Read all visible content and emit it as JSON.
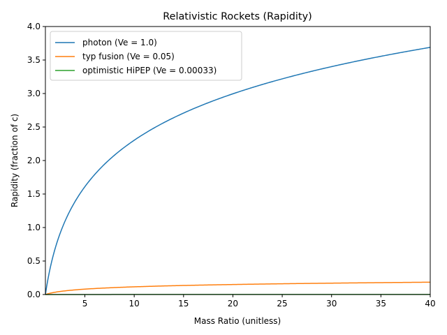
{
  "chart_data": {
    "type": "line",
    "title": "Relativistic Rockets (Rapidity)",
    "xlabel": "Mass Ratio (unitless)",
    "ylabel": "Rapidity (fraction of c)",
    "xlim": [
      1,
      40
    ],
    "ylim": [
      0,
      4.0
    ],
    "xticks": [
      5,
      10,
      15,
      20,
      25,
      30,
      35,
      40
    ],
    "xtick_labels": [
      "5",
      "10",
      "15",
      "20",
      "25",
      "30",
      "35",
      "40"
    ],
    "yticks": [
      0,
      0.5,
      1.0,
      1.5,
      2.0,
      2.5,
      3.0,
      3.5,
      4.0
    ],
    "ytick_labels": [
      "0.0",
      "0.5",
      "1.0",
      "1.5",
      "2.0",
      "2.5",
      "3.0",
      "3.5",
      "4.0"
    ],
    "grid": false,
    "legend_position": "top-left",
    "x": [
      1,
      1.5,
      2,
      3,
      4,
      5,
      6,
      8,
      10,
      12,
      15,
      20,
      25,
      30,
      35,
      40
    ],
    "series": [
      {
        "name": "photon (Ve = 1.0)",
        "color": "#1f77b4",
        "values": [
          0,
          0.405,
          0.693,
          1.099,
          1.386,
          1.609,
          1.792,
          2.079,
          2.303,
          2.485,
          2.708,
          2.996,
          3.219,
          3.401,
          3.555,
          3.689
        ]
      },
      {
        "name": "typ fusion (Ve = 0.05)",
        "color": "#ff7f0e",
        "values": [
          0,
          0.0203,
          0.0347,
          0.0549,
          0.0693,
          0.0805,
          0.0896,
          0.104,
          0.115,
          0.124,
          0.135,
          0.15,
          0.161,
          0.17,
          0.178,
          0.184
        ]
      },
      {
        "name": "optimistic HiPEP (Ve = 0.00033)",
        "color": "#2ca02c",
        "values": [
          0,
          0.00013,
          0.00023,
          0.00036,
          0.00046,
          0.00053,
          0.00059,
          0.00069,
          0.00076,
          0.00082,
          0.00089,
          0.00099,
          0.00106,
          0.00112,
          0.00117,
          0.00122
        ]
      }
    ]
  }
}
